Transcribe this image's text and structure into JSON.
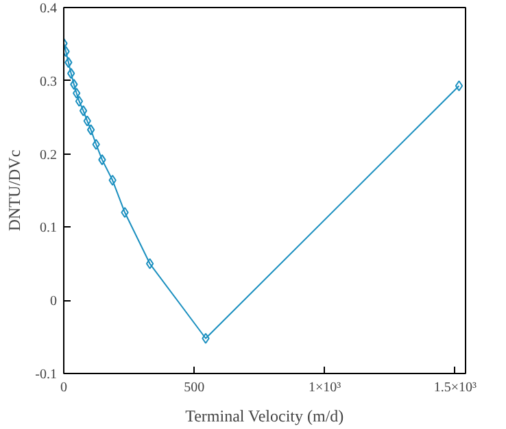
{
  "chart_data": {
    "type": "line",
    "xlabel": "Terminal Velocity (m/d)",
    "ylabel": "DNTU/DVc",
    "x": [
      0,
      8,
      18,
      28,
      39,
      49,
      59,
      75,
      90,
      104,
      124,
      147,
      187,
      234,
      330,
      544,
      1515
    ],
    "series": [
      {
        "color": "#1a8fbf",
        "values": [
          0.351,
          0.34,
          0.325,
          0.31,
          0.295,
          0.283,
          0.272,
          0.259,
          0.245,
          0.233,
          0.213,
          0.192,
          0.164,
          0.12,
          0.05,
          -0.052,
          0.293
        ]
      }
    ],
    "marker": "diamond",
    "line_style": "solid",
    "grid": false,
    "xlim": [
      0,
      1540
    ],
    "ylim": [
      -0.1,
      0.4
    ],
    "xticks": [
      0,
      500,
      {
        "value": 1000,
        "label": "1×10³"
      },
      {
        "value": 1500,
        "label": "1.5×10³"
      }
    ],
    "yticks": [
      -0.1,
      0,
      0.1,
      0.2,
      0.3,
      0.4
    ]
  }
}
